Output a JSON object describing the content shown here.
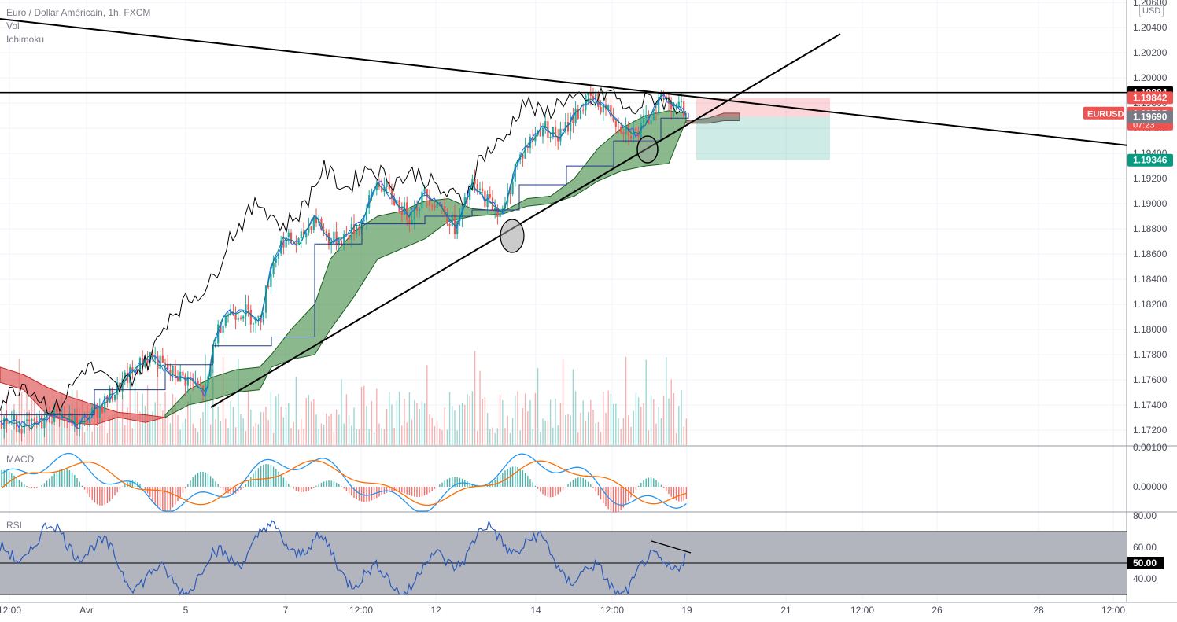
{
  "header": {
    "title": "Euro / Dollar Américain, 1h, FXCM",
    "indicators": [
      "Vol",
      "Ichimoku"
    ],
    "currency_button": "USD"
  },
  "colors": {
    "up": "#26a69a",
    "down": "#ef5350",
    "cloud_bull": "#2e7d32",
    "cloud_bear": "#e06666",
    "tenkan": "#2962ff",
    "chikou": "#000000",
    "macd_line": "#2196f3",
    "signal_line": "#ff6d00",
    "rsi_line": "#2a59b8",
    "rsi_band": "#b2b5be"
  },
  "chart_data": [
    {
      "type": "candlestick",
      "pane": "price",
      "symbol_label": "EURUSD",
      "y_axis": {
        "ticks": [
          "1.20600",
          "1.20400",
          "1.20200",
          "1.20000",
          "1.19800",
          "1.19600",
          "1.19400",
          "1.19200",
          "1.19000",
          "1.18800",
          "1.18600",
          "1.18400",
          "1.18200",
          "1.18000",
          "1.17800",
          "1.17600",
          "1.17400",
          "1.17200"
        ],
        "range": [
          1.1708,
          1.2062
        ]
      },
      "x_axis": {
        "ticks": [
          "12:00",
          "Avr",
          "5",
          "7",
          "12:00",
          "12",
          "14",
          "12:00",
          "19",
          "21",
          "12:00",
          "26",
          "28",
          "12:00"
        ]
      },
      "price_labels": [
        {
          "text": "1.19884",
          "value": 1.19884,
          "color": "#000000"
        },
        {
          "text": "1.19842",
          "value": 1.19842,
          "color": "#ef5350"
        },
        {
          "text": "1.19715",
          "sub": "07:23",
          "value": 1.19715,
          "color": "#ef5350",
          "symbol": "EURUSD"
        },
        {
          "text": "1.19690",
          "value": 1.1969,
          "color": "#787b86"
        },
        {
          "text": "1.19346",
          "value": 1.19346,
          "color": "#089981"
        }
      ],
      "series": [
        {
          "name": "Ichimoku Chikou",
          "price_points": [
            [
              0,
              1.1742
            ],
            [
              30,
              1.1758
            ],
            [
              70,
              1.1735
            ],
            [
              110,
              1.1772
            ],
            [
              150,
              1.1752
            ],
            [
              190,
              1.1776
            ],
            [
              215,
              1.1812
            ],
            [
              245,
              1.1826
            ],
            [
              270,
              1.1838
            ],
            [
              290,
              1.1872
            ],
            [
              330,
              1.1902
            ],
            [
              360,
              1.1881
            ],
            [
              385,
              1.1896
            ],
            [
              410,
              1.1928
            ],
            [
              440,
              1.1912
            ],
            [
              470,
              1.193
            ],
            [
              500,
              1.1918
            ],
            [
              530,
              1.1925
            ],
            [
              560,
              1.191
            ],
            [
              590,
              1.1902
            ],
            [
              610,
              1.1937
            ],
            [
              640,
              1.195
            ],
            [
              665,
              1.1982
            ],
            [
              690,
              1.197
            ],
            [
              720,
              1.1985
            ],
            [
              750,
              1.1978
            ],
            [
              775,
              1.199
            ],
            [
              800,
              1.1972
            ],
            [
              830,
              1.1985
            ],
            [
              865,
              1.1976
            ]
          ]
        },
        {
          "name": "Ichimoku Kijun",
          "price_points": [
            [
              0,
              1.1732
            ],
            [
              120,
              1.1752
            ],
            [
              210,
              1.1772
            ],
            [
              270,
              1.1787
            ],
            [
              345,
              1.1794
            ],
            [
              400,
              1.1868
            ],
            [
              460,
              1.1884
            ],
            [
              540,
              1.189
            ],
            [
              600,
              1.1895
            ],
            [
              660,
              1.1915
            ],
            [
              720,
              1.193
            ],
            [
              780,
              1.195
            ],
            [
              840,
              1.1968
            ],
            [
              875,
              1.1972
            ]
          ]
        }
      ],
      "trendlines": [
        {
          "name": "descending-trendline",
          "points": [
            [
              0,
              1.2047
            ],
            [
              1432,
              1.19465
            ]
          ]
        },
        {
          "name": "ascending-trendline",
          "points": [
            [
              268,
              1.1738
            ],
            [
              1068,
              1.2035
            ]
          ]
        },
        {
          "name": "horizontal-resistance",
          "value": 1.19884
        }
      ],
      "position_box": {
        "entry": 1.1969,
        "stop": 1.19842,
        "target": 1.19346
      }
    },
    {
      "type": "histogram",
      "pane": "macd",
      "title": "MACD",
      "y_axis": {
        "ticks": [
          "0.00100",
          "0.00000"
        ],
        "range": [
          -0.00062,
          0.00102
        ]
      }
    },
    {
      "type": "line",
      "pane": "rsi",
      "title": "RSI",
      "y_axis": {
        "ticks": [
          "80.00",
          "60.00",
          "50.00",
          "40.00"
        ],
        "range": [
          25,
          82
        ]
      },
      "bands": {
        "upper": 70,
        "middle": 50,
        "lower": 30
      }
    }
  ]
}
